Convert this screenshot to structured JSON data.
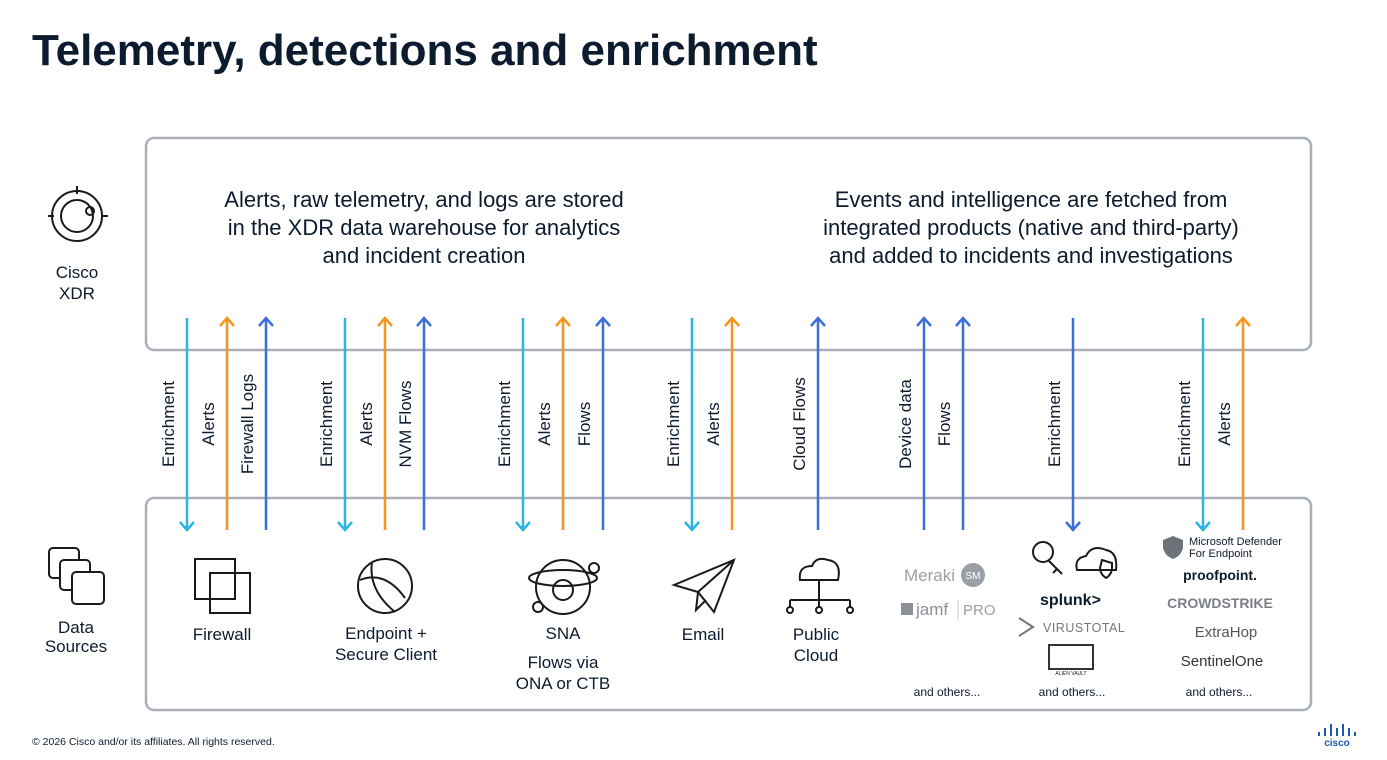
{
  "title": "Telemetry, detections and enrichment",
  "xdr": {
    "label_lines": [
      "Cisco",
      "XDR"
    ],
    "left_text_lines": [
      "Alerts, raw telemetry, and logs are stored",
      "in the XDR data warehouse for analytics",
      "and incident creation"
    ],
    "right_text_lines": [
      "Events and intelligence are fetched from",
      "integrated products (native and third-party)",
      "and added to incidents and investigations"
    ]
  },
  "arrow_labels": [
    "Enrichment",
    "Alerts",
    "Firewall Logs",
    "Enrichment",
    "Alerts",
    "NVM Flows",
    "Enrichment",
    "Alerts",
    "Flows",
    "Enrichment",
    "Alerts",
    "Cloud Flows",
    "Device data",
    "Flows",
    "Enrichment",
    "Enrichment",
    "Alerts"
  ],
  "data_sources": {
    "label_lines": [
      "Data",
      "Sources"
    ],
    "firewall": "Firewall",
    "endpoint_lines": [
      "Endpoint +",
      "Secure Client"
    ],
    "sna": "SNA",
    "sna_note_lines": [
      "Flows via",
      "ONA or CTB"
    ],
    "email": "Email",
    "cloud_lines": [
      "Public",
      "Cloud"
    ],
    "group1": {
      "logos": [
        "Meraki",
        "SM",
        "jamf",
        "PRO"
      ],
      "others": "and others..."
    },
    "group2": {
      "logos": [
        "splunk>",
        "VIRUSTOTAL",
        "ALIEN VAULT"
      ],
      "others": "and others..."
    },
    "group3": {
      "logos": [
        "Microsoft Defender",
        "For Endpoint",
        "proofpoint.",
        "CROWDSTRIKE",
        "ExtraHop",
        "SentinelOne"
      ],
      "others": "and others..."
    }
  },
  "footer": {
    "copyright": "© 2026 Cisco and/or its affiliates. All rights reserved.",
    "logo": "cisco"
  }
}
